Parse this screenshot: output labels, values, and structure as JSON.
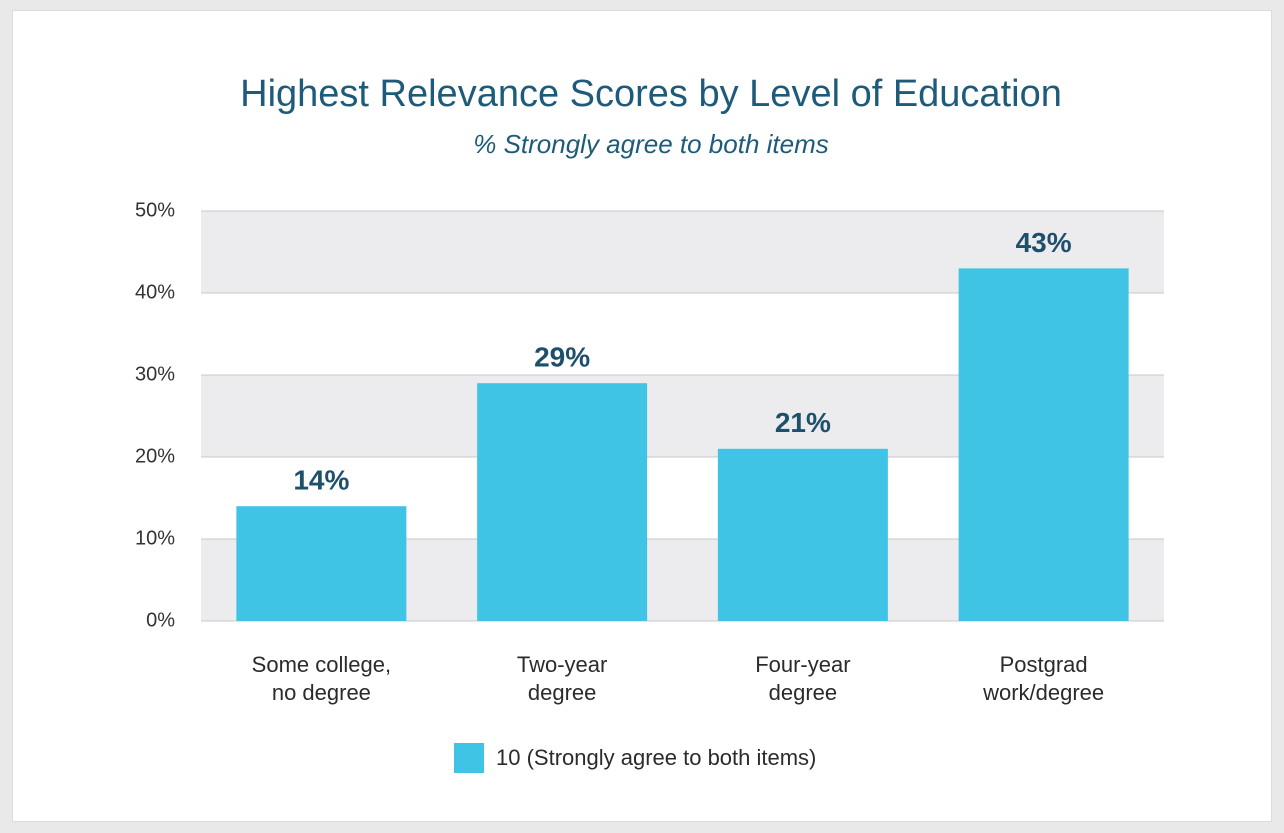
{
  "chart_data": {
    "type": "bar",
    "title": "Highest Relevance Scores by Level of Education",
    "subtitle": "% Strongly agree to both items",
    "categories": [
      "Some college, no degree",
      "Two-year degree",
      "Four-year degree",
      "Postgrad work/degree"
    ],
    "series": [
      {
        "name": "10 (Strongly agree to both items)",
        "color": "#40c4e6",
        "values": [
          14,
          29,
          21,
          43
        ],
        "value_labels": [
          "14%",
          "29%",
          "21%",
          "43%"
        ]
      }
    ],
    "ylim": [
      0,
      50
    ],
    "yticks": [
      {
        "value": 0,
        "label": "0%"
      },
      {
        "value": 10,
        "label": "10%"
      },
      {
        "value": 20,
        "label": "20%"
      },
      {
        "value": 30,
        "label": "30%"
      },
      {
        "value": 40,
        "label": "40%"
      },
      {
        "value": 50,
        "label": "50%"
      }
    ],
    "grid": true
  }
}
